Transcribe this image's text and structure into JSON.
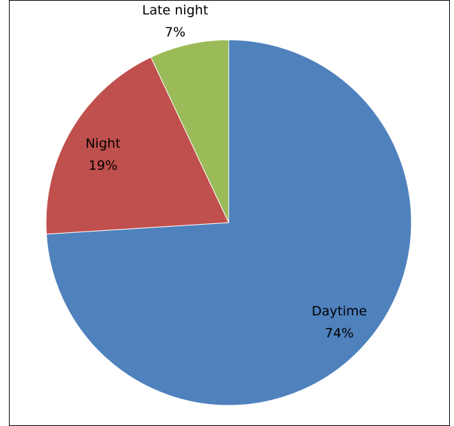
{
  "chart_data": {
    "type": "pie",
    "start_angle_deg": 0,
    "direction": "clockwise",
    "slices": [
      {
        "label": "Daytime",
        "value": 74,
        "value_label": "74%",
        "color": "#4F81BD"
      },
      {
        "label": "Night",
        "value": 19,
        "value_label": "19%",
        "color": "#C0504D"
      },
      {
        "label": "Late night",
        "value": 7,
        "value_label": "7%",
        "color": "#9BBB59"
      }
    ],
    "legend": "none",
    "labels_position": "inside"
  }
}
